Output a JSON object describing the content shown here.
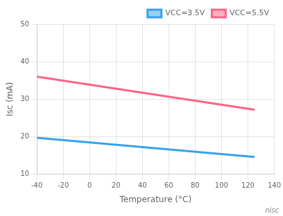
{
  "chart_data": {
    "type": "line",
    "xlabel": "Temperature (°C)",
    "ylabel": "Isc (mA)",
    "x": [
      -40,
      125
    ],
    "series": [
      {
        "name": "VCC=3.5V",
        "values": [
          19.7,
          14.6
        ]
      },
      {
        "name": "VCC=5.5V",
        "values": [
          36.0,
          27.2
        ]
      }
    ],
    "xlim": [
      -40,
      140
    ],
    "ylim": [
      10,
      50
    ],
    "xticks": [
      -40,
      -20,
      0,
      20,
      40,
      60,
      80,
      100,
      120,
      140
    ],
    "yticks": [
      10,
      20,
      30,
      40,
      50
    ],
    "grid": true,
    "legend": "upper right",
    "annotations": [
      "nisc"
    ]
  }
}
